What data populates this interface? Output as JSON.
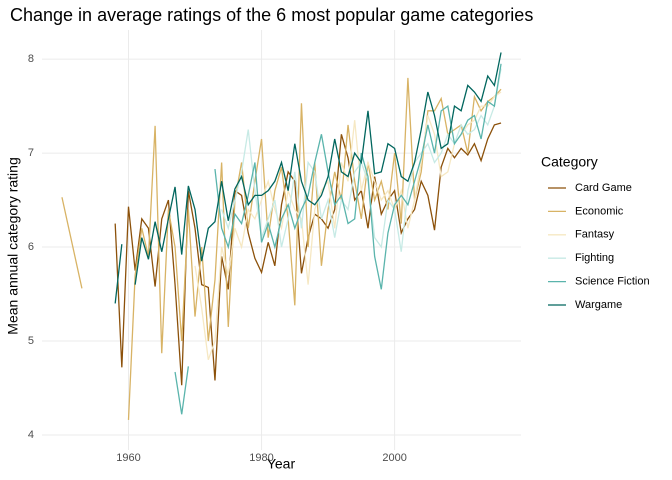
{
  "chart_data": {
    "type": "line",
    "title": "Change in average ratings of the 6 most popular game categories",
    "x_label": "Year",
    "y_label": "Mean annual category rating",
    "legend_title": "Category",
    "legend_position": "right",
    "grid": true,
    "xlim": [
      1947,
      2019
    ],
    "ylim": [
      3.84,
      8.31
    ],
    "xticks": [
      1960,
      1980,
      2000
    ],
    "yticks": [
      4,
      5,
      6,
      7,
      8
    ],
    "series": [
      {
        "name": "Card Game",
        "color": "#8c510a",
        "x": [
          1958,
          1959,
          1960,
          1961,
          1962,
          1963,
          1964,
          1965,
          1966,
          1967,
          1968,
          1969,
          1970,
          1971,
          1972,
          1973,
          1974,
          1975,
          1976,
          1977,
          1978,
          1979,
          1980,
          1981,
          1982,
          1983,
          1984,
          1985,
          1986,
          1987,
          1988,
          1989,
          1990,
          1991,
          1992,
          1993,
          1994,
          1995,
          1996,
          1997,
          1998,
          1999,
          2000,
          2001,
          2002,
          2003,
          2004,
          2005,
          2006,
          2007,
          2008,
          2009,
          2010,
          2011,
          2012,
          2013,
          2014,
          2015,
          2016
        ],
        "values": [
          6.25,
          4.72,
          6.43,
          5.75,
          6.3,
          6.2,
          5.58,
          6.3,
          6.5,
          5.6,
          4.53,
          6.6,
          6.2,
          5.6,
          5.57,
          4.58,
          5.9,
          5.55,
          6.6,
          6.55,
          6.15,
          5.88,
          5.73,
          6.05,
          5.8,
          6.45,
          6.8,
          6.7,
          5.72,
          6.1,
          6.35,
          6.3,
          6.2,
          6.4,
          7.2,
          6.95,
          6.5,
          6.6,
          6.2,
          6.75,
          6.35,
          6.5,
          6.6,
          6.15,
          6.3,
          6.4,
          6.7,
          6.55,
          6.18,
          6.85,
          7.05,
          6.95,
          7.05,
          6.98,
          7.1,
          6.92,
          7.15,
          7.3,
          7.32
        ]
      },
      {
        "name": "Economic",
        "color": "#d8b365",
        "x": [
          1950,
          1953,
          1956,
          1960,
          1961,
          1962,
          1963,
          1964,
          1965,
          1966,
          1967,
          1968,
          1969,
          1970,
          1971,
          1972,
          1973,
          1974,
          1975,
          1976,
          1977,
          1978,
          1979,
          1980,
          1981,
          1982,
          1983,
          1984,
          1985,
          1986,
          1987,
          1988,
          1989,
          1990,
          1991,
          1992,
          1993,
          1994,
          1995,
          1996,
          1997,
          1998,
          1999,
          2000,
          2001,
          2002,
          2003,
          2004,
          2005,
          2006,
          2007,
          2008,
          2009,
          2010,
          2011,
          2012,
          2013,
          2014,
          2015,
          2016
        ],
        "values": [
          6.53,
          5.56,
          null,
          4.16,
          5.7,
          6.2,
          5.9,
          7.29,
          4.87,
          6.4,
          6.0,
          5.0,
          6.4,
          5.26,
          6.0,
          5.0,
          5.65,
          6.9,
          5.15,
          6.5,
          6.9,
          6.2,
          6.7,
          7.15,
          6.1,
          6.6,
          6.85,
          6.3,
          5.38,
          7.53,
          6.0,
          6.9,
          5.8,
          6.4,
          6.8,
          6.5,
          7.3,
          6.7,
          6.3,
          6.9,
          6.5,
          6.7,
          6.4,
          7.0,
          6.25,
          7.8,
          6.5,
          6.8,
          7.45,
          7.45,
          7.58,
          7.2,
          7.25,
          7.3,
          7.0,
          7.6,
          7.45,
          7.55,
          7.6,
          7.68
        ]
      },
      {
        "name": "Fantasy",
        "color": "#f6e8c3",
        "x": [
          1970,
          1971,
          1972,
          1973,
          1974,
          1975,
          1976,
          1977,
          1978,
          1979,
          1980,
          1981,
          1982,
          1983,
          1984,
          1985,
          1986,
          1987,
          1988,
          1989,
          1990,
          1991,
          1992,
          1993,
          1994,
          1995,
          1996,
          1997,
          1998,
          1999,
          2000,
          2001,
          2002,
          2003,
          2004,
          2005,
          2006,
          2007,
          2008,
          2009,
          2010,
          2011,
          2012,
          2013,
          2014,
          2015,
          2016
        ],
        "values": [
          5.8,
          5.35,
          4.8,
          5.0,
          6.0,
          5.7,
          6.2,
          6.0,
          6.4,
          6.3,
          6.5,
          6.7,
          6.4,
          6.2,
          6.6,
          6.4,
          6.3,
          5.6,
          6.4,
          6.6,
          6.7,
          6.2,
          6.9,
          6.7,
          7.35,
          6.6,
          6.9,
          6.7,
          6.5,
          6.6,
          6.4,
          6.6,
          6.2,
          6.5,
          6.9,
          7.4,
          7.2,
          6.75,
          6.8,
          7.1,
          7.2,
          7.3,
          7.35,
          7.5,
          7.5,
          7.6,
          7.65
        ]
      },
      {
        "name": "Fighting",
        "color": "#c7eae5",
        "x": [
          1974,
          1975,
          1976,
          1977,
          1978,
          1979,
          1980,
          1981,
          1982,
          1983,
          1984,
          1985,
          1986,
          1987,
          1988,
          1989,
          1990,
          1991,
          1992,
          1993,
          1994,
          1995,
          1996,
          1997,
          1998,
          1999,
          2000,
          2001,
          2002,
          2003,
          2004,
          2005,
          2006,
          2007,
          2008,
          2009,
          2010,
          2011,
          2012,
          2013,
          2014,
          2015,
          2016
        ],
        "values": [
          6.4,
          6.2,
          6.5,
          6.8,
          7.25,
          6.6,
          6.1,
          6.3,
          6.5,
          6.0,
          6.3,
          6.8,
          6.2,
          6.9,
          6.8,
          6.3,
          6.5,
          6.1,
          6.5,
          6.4,
          6.8,
          6.9,
          6.7,
          6.1,
          6.0,
          6.5,
          6.4,
          5.95,
          6.6,
          6.9,
          7.0,
          7.1,
          6.9,
          7.0,
          7.2,
          7.1,
          7.3,
          7.2,
          7.25,
          7.4,
          7.3,
          7.5,
          7.9
        ]
      },
      {
        "name": "Science Fiction",
        "color": "#5ab4ac",
        "x": [
          1967,
          1968,
          1969,
          1971,
          1973,
          1974,
          1975,
          1976,
          1977,
          1978,
          1979,
          1980,
          1981,
          1982,
          1983,
          1984,
          1985,
          1986,
          1987,
          1988,
          1989,
          1990,
          1991,
          1992,
          1993,
          1994,
          1995,
          1996,
          1997,
          1998,
          1999,
          2000,
          2001,
          2002,
          2003,
          2004,
          2005,
          2006,
          2007,
          2008,
          2009,
          2010,
          2011,
          2012,
          2013,
          2014,
          2015,
          2016
        ],
        "values": [
          4.67,
          4.22,
          4.73,
          null,
          6.83,
          6.2,
          6.0,
          6.35,
          6.25,
          6.55,
          6.9,
          6.05,
          6.25,
          6.0,
          6.3,
          6.45,
          6.2,
          6.4,
          6.55,
          6.9,
          7.2,
          6.8,
          6.45,
          6.55,
          6.25,
          6.3,
          7.0,
          6.75,
          5.9,
          5.55,
          6.15,
          6.45,
          6.55,
          6.45,
          6.7,
          6.95,
          7.3,
          7.0,
          7.45,
          7.5,
          7.1,
          7.2,
          7.35,
          7.4,
          7.15,
          7.55,
          7.5,
          7.95
        ]
      },
      {
        "name": "Wargame",
        "color": "#01665e",
        "x": [
          1958,
          1959,
          1960,
          1961,
          1962,
          1963,
          1964,
          1965,
          1966,
          1967,
          1968,
          1969,
          1970,
          1971,
          1972,
          1973,
          1974,
          1975,
          1976,
          1977,
          1978,
          1979,
          1980,
          1981,
          1982,
          1983,
          1984,
          1985,
          1986,
          1987,
          1988,
          1989,
          1990,
          1991,
          1992,
          1993,
          1994,
          1995,
          1996,
          1997,
          1998,
          1999,
          2000,
          2001,
          2002,
          2003,
          2004,
          2005,
          2006,
          2007,
          2008,
          2009,
          2010,
          2011,
          2012,
          2013,
          2014,
          2015,
          2016
        ],
        "values": [
          5.4,
          6.03,
          null,
          5.6,
          6.1,
          5.87,
          6.27,
          5.95,
          6.3,
          6.64,
          5.92,
          6.65,
          6.4,
          5.85,
          6.2,
          6.27,
          6.7,
          6.28,
          6.62,
          6.75,
          6.45,
          6.55,
          6.55,
          6.6,
          6.7,
          6.9,
          6.6,
          7.1,
          6.7,
          6.5,
          6.45,
          6.55,
          6.75,
          7.15,
          6.8,
          6.75,
          7.0,
          6.9,
          7.45,
          6.78,
          6.8,
          7.1,
          7.05,
          6.75,
          6.7,
          6.9,
          7.25,
          7.65,
          7.4,
          7.05,
          7.1,
          7.5,
          7.45,
          7.72,
          7.65,
          7.55,
          7.82,
          7.72,
          8.07
        ]
      }
    ]
  }
}
